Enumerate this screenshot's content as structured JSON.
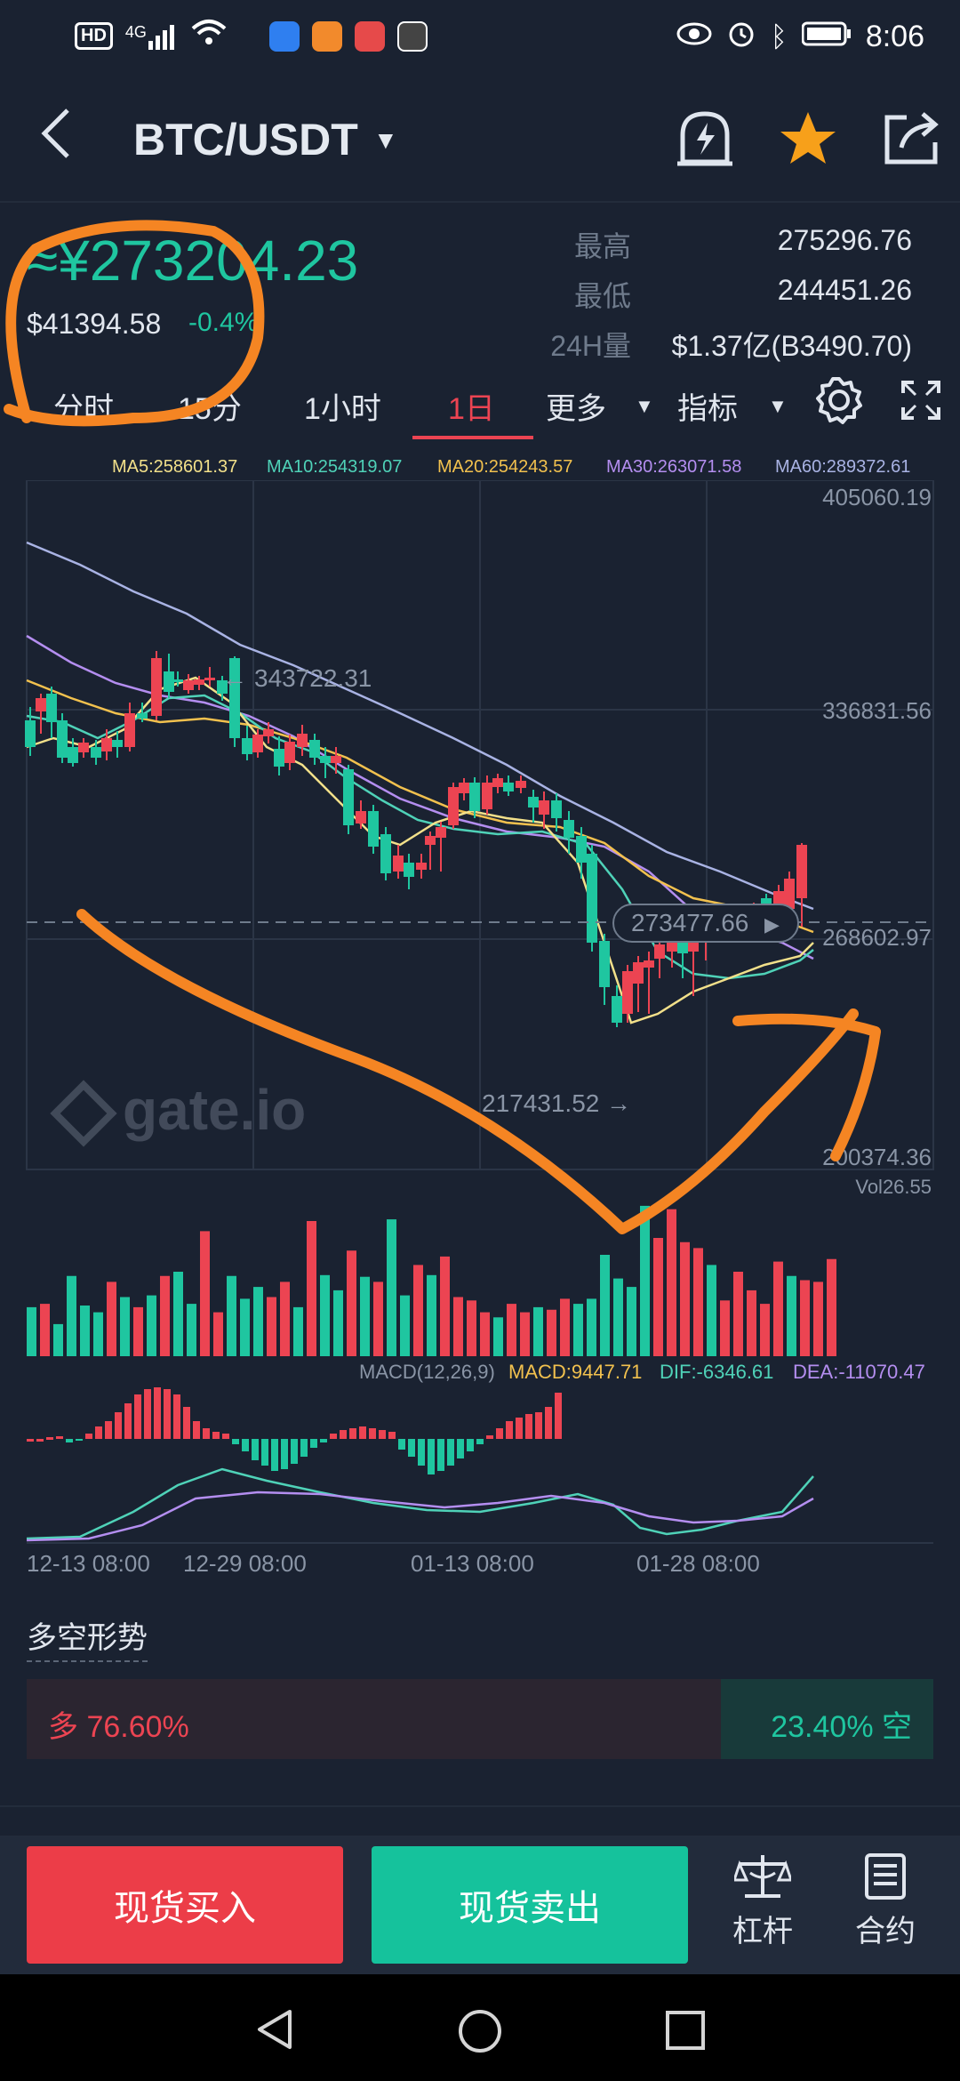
{
  "status_bar": {
    "badge_hd": "HD",
    "network": "4G",
    "time": "8:06"
  },
  "header": {
    "back_icon": "chevron-left-icon",
    "pair": "BTC/USDT",
    "alert_icon": "bell-lightning-icon",
    "favorite_icon": "star-icon",
    "share_icon": "share-icon"
  },
  "price": {
    "cny": "≈¥273204.23",
    "usd": "$41394.58",
    "change": "-0.4%"
  },
  "stats": {
    "high_label": "最高",
    "high_value": "275296.76",
    "low_label": "最低",
    "low_value": "244451.26",
    "vol_label": "24H量",
    "vol_value": "$1.37亿(B3490.70)"
  },
  "tabs": {
    "t1": "分时",
    "t2": "15分",
    "t3": "1小时",
    "t4": "1日",
    "more": "更多",
    "indicator": "指标"
  },
  "ma_legend": {
    "ma5": "MA5:258601.37",
    "ma10": "MA10:254319.07",
    "ma20": "MA20:254243.57",
    "ma30": "MA30:263071.58",
    "ma60": "MA60:289372.61"
  },
  "chart": {
    "y_labels": [
      "405060.19",
      "336831.56",
      "268602.97",
      "200374.36"
    ],
    "high_marker": "343722.31",
    "low_marker": "217431.52",
    "current_price": "273477.66",
    "vol_label": "Vol26.55",
    "macd_label": "MACD(12,26,9)",
    "macd_value": "MACD:9447.71",
    "dif_value": "DIF:-6346.61",
    "dea_value": "DEA:-11070.47",
    "x_labels": [
      "12-13 08:00",
      "12-29 08:00",
      "01-13 08:00",
      "01-28 08:00"
    ],
    "watermark": "gate.io",
    "colors": {
      "up": "#ec4452",
      "down": "#1fc6a0",
      "ma5": "#f2e08a",
      "ma10": "#4fd2b8",
      "ma20": "#f2c14e",
      "ma30": "#b48ef0",
      "ma60": "#a9b3e4",
      "annotation": "#f58523"
    }
  },
  "long_short": {
    "title": "多空形势",
    "long_text": "多 76.60%",
    "short_text": "23.40% 空",
    "long_fraction": 0.766
  },
  "bottom_bar": {
    "buy": "现货买入",
    "sell": "现货卖出",
    "leverage": "杠杆",
    "contract": "合约"
  }
}
